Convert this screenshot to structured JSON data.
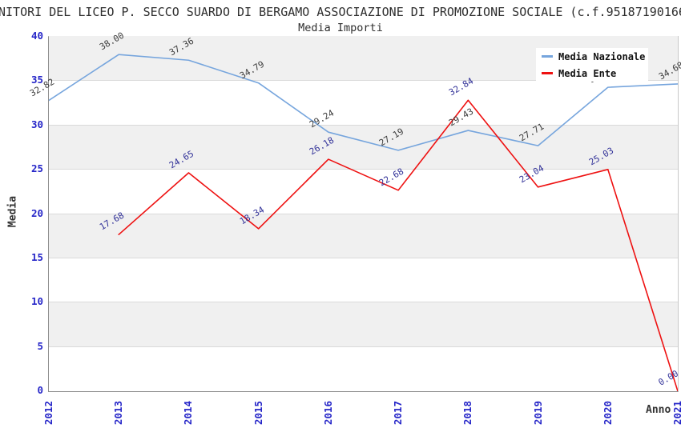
{
  "title": "NITORI DEL LICEO P. SECCO SUARDO DI BERGAMO ASSOCIAZIONE DI PROMOZIONE SOCIALE (c.f.95187190166",
  "subtitle": "Media Importi",
  "legend": {
    "items": [
      {
        "label": "Media Nazionale",
        "color": "#76a5dd"
      },
      {
        "label": "Media Ente",
        "color": "#ee1111"
      }
    ]
  },
  "axes": {
    "y_label": "Media",
    "x_label": "Anno",
    "tick_color": "#2626c8",
    "y_ticks": [
      0,
      5,
      10,
      15,
      20,
      25,
      30,
      35,
      40
    ],
    "x_ticks": [
      "2012",
      "2013",
      "2014",
      "2015",
      "2016",
      "2017",
      "2018",
      "2019",
      "2020",
      "2021"
    ]
  },
  "chart_data": {
    "type": "line",
    "title": "Media Importi",
    "xlabel": "Anno",
    "ylabel": "Media",
    "ylim": [
      0,
      40
    ],
    "x": [
      2012,
      2013,
      2014,
      2015,
      2016,
      2017,
      2018,
      2019,
      2020,
      2021
    ],
    "grid": true,
    "band_fill_color": "#f0f0f0",
    "legend_position": "top-right",
    "series": [
      {
        "name": "Media Nazionale",
        "color": "#76a5dd",
        "label_color": "#3d3d3d",
        "points": [
          [
            2012,
            32.82
          ],
          [
            2013,
            38.0
          ],
          [
            2014,
            37.36
          ],
          [
            2015,
            34.79
          ],
          [
            2016,
            29.24
          ],
          [
            2017,
            27.19
          ],
          [
            2018,
            29.43
          ],
          [
            2019,
            27.71
          ],
          [
            2020,
            34.3
          ],
          [
            2021,
            34.68
          ]
        ],
        "note": "2020 value estimated from line position; its data label is hidden behind the legend box"
      },
      {
        "name": "Media Ente",
        "color": "#ee1111",
        "label_color": "#333399",
        "points": [
          [
            2013,
            17.68
          ],
          [
            2014,
            24.65
          ],
          [
            2015,
            18.34
          ],
          [
            2016,
            26.18
          ],
          [
            2017,
            22.68
          ],
          [
            2018,
            32.84
          ],
          [
            2019,
            23.04
          ],
          [
            2020,
            25.03
          ],
          [
            2021,
            0.0
          ]
        ]
      }
    ]
  }
}
